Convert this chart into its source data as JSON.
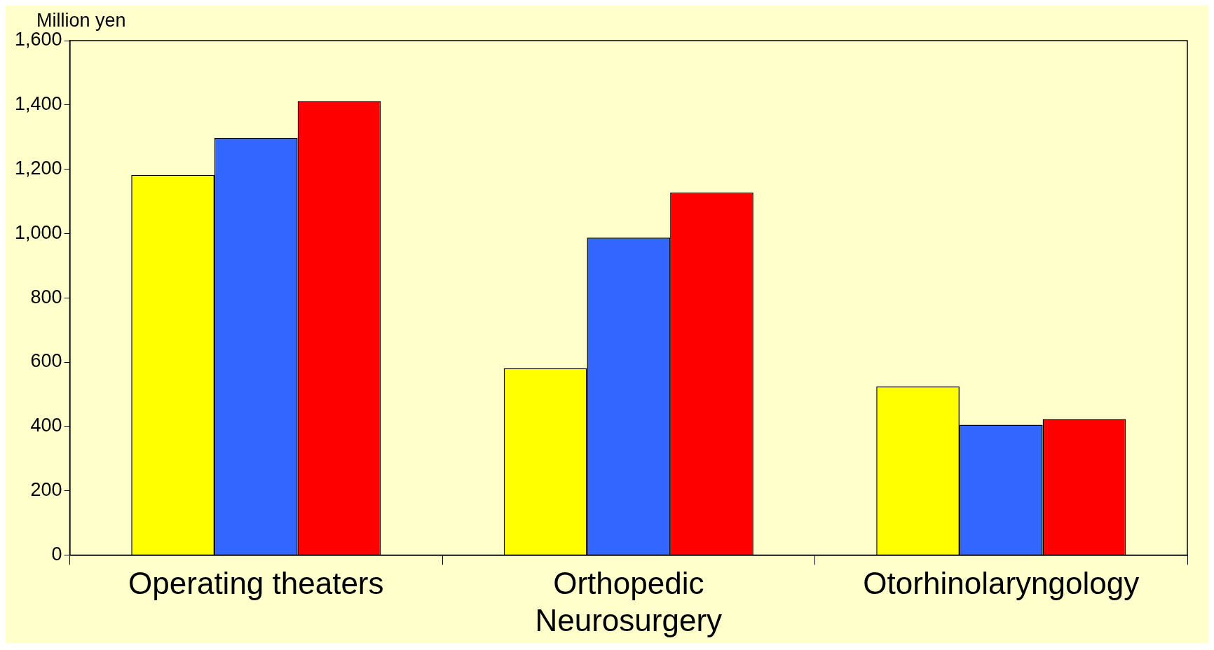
{
  "chart_data": {
    "type": "bar",
    "ylabel": "Million yen",
    "categories": [
      "Operating theaters",
      "Orthopedic Neurosurgery",
      "Otorhinolaryngology"
    ],
    "series": [
      {
        "color": "#ffff00",
        "values": [
          1182,
          581,
          525
        ]
      },
      {
        "color": "#3366ff",
        "values": [
          1297,
          987,
          405
        ]
      },
      {
        "color": "#ff0000",
        "values": [
          1412,
          1128,
          423
        ]
      }
    ],
    "ylim": [
      0,
      1600
    ],
    "yticks": [
      0,
      200,
      400,
      600,
      800,
      {
        "value": 1000,
        "label": "1,000"
      },
      {
        "value": 1200,
        "label": "1,200"
      },
      {
        "value": 1400,
        "label": "1,400"
      },
      {
        "value": 1600,
        "label": "1,600"
      }
    ],
    "grid": false,
    "legend": false
  }
}
